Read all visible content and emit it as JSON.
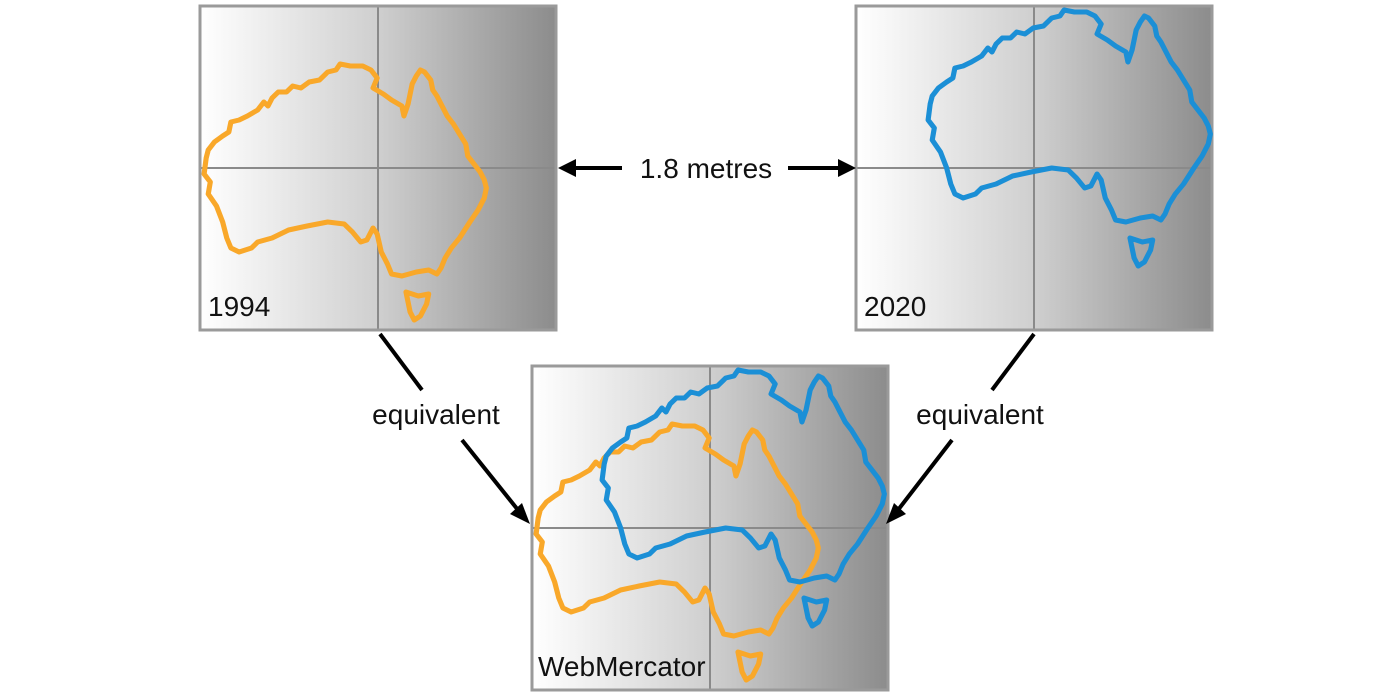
{
  "panels": {
    "top_left": {
      "label": "1994"
    },
    "top_right": {
      "label": "2020"
    },
    "bottom": {
      "label": "WebMercator"
    }
  },
  "arrows": {
    "distance_label": "1.8 metres",
    "left_label": "equivalent",
    "right_label": "equivalent"
  },
  "colors": {
    "datum_1994": "#f9a82a",
    "datum_2020": "#1b8fd6",
    "arrow": "#000000"
  }
}
